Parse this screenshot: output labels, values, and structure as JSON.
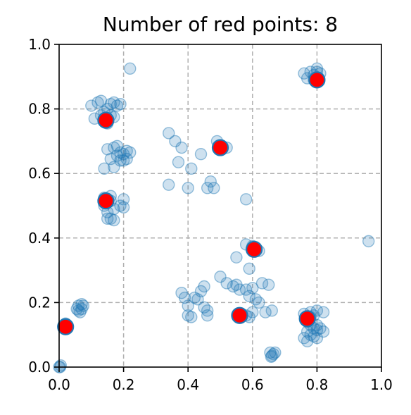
{
  "chart_data": {
    "type": "scatter",
    "title": "Number of red points: 8",
    "xlabel": "",
    "ylabel": "",
    "xlim": [
      0.0,
      1.0
    ],
    "ylim": [
      0.0,
      1.0
    ],
    "x_ticks": [
      "0.0",
      "0.2",
      "0.4",
      "0.6",
      "0.8",
      "1.0"
    ],
    "y_ticks": [
      "0.0",
      "0.2",
      "0.4",
      "0.6",
      "0.8",
      "1.0"
    ],
    "grid": true,
    "colors": {
      "blue": "#1f77b4",
      "red": "#ff0000"
    },
    "series": [
      {
        "points": [
          [
            0.22,
            0.925
          ],
          [
            0.76,
            0.91
          ],
          [
            0.78,
            0.915
          ],
          [
            0.79,
            0.905
          ],
          [
            0.8,
            0.925
          ],
          [
            0.81,
            0.91
          ],
          [
            0.77,
            0.895
          ],
          [
            0.79,
            0.89
          ],
          [
            0.8,
            0.915
          ],
          [
            0.1,
            0.81
          ],
          [
            0.12,
            0.82
          ],
          [
            0.13,
            0.825
          ],
          [
            0.15,
            0.8
          ],
          [
            0.16,
            0.815
          ],
          [
            0.17,
            0.82
          ],
          [
            0.18,
            0.81
          ],
          [
            0.14,
            0.79
          ],
          [
            0.11,
            0.77
          ],
          [
            0.13,
            0.78
          ],
          [
            0.16,
            0.78
          ],
          [
            0.19,
            0.815
          ],
          [
            0.15,
            0.755
          ],
          [
            0.17,
            0.775
          ],
          [
            0.17,
            0.68
          ],
          [
            0.18,
            0.685
          ],
          [
            0.19,
            0.665
          ],
          [
            0.2,
            0.66
          ],
          [
            0.21,
            0.67
          ],
          [
            0.22,
            0.665
          ],
          [
            0.15,
            0.675
          ],
          [
            0.16,
            0.645
          ],
          [
            0.17,
            0.62
          ],
          [
            0.14,
            0.615
          ],
          [
            0.19,
            0.64
          ],
          [
            0.2,
            0.64
          ],
          [
            0.18,
            0.655
          ],
          [
            0.21,
            0.645
          ],
          [
            0.34,
            0.725
          ],
          [
            0.36,
            0.7
          ],
          [
            0.38,
            0.68
          ],
          [
            0.37,
            0.635
          ],
          [
            0.34,
            0.565
          ],
          [
            0.41,
            0.615
          ],
          [
            0.4,
            0.555
          ],
          [
            0.44,
            0.66
          ],
          [
            0.47,
            0.575
          ],
          [
            0.46,
            0.555
          ],
          [
            0.48,
            0.555
          ],
          [
            0.49,
            0.7
          ],
          [
            0.5,
            0.68
          ],
          [
            0.52,
            0.68
          ],
          [
            0.14,
            0.5
          ],
          [
            0.15,
            0.48
          ],
          [
            0.16,
            0.515
          ],
          [
            0.17,
            0.49
          ],
          [
            0.15,
            0.46
          ],
          [
            0.16,
            0.46
          ],
          [
            0.17,
            0.455
          ],
          [
            0.19,
            0.5
          ],
          [
            0.2,
            0.52
          ],
          [
            0.2,
            0.495
          ],
          [
            0.14,
            0.525
          ],
          [
            0.16,
            0.53
          ],
          [
            0.58,
            0.52
          ],
          [
            0.96,
            0.39
          ],
          [
            0.55,
            0.34
          ],
          [
            0.58,
            0.38
          ],
          [
            0.6,
            0.375
          ],
          [
            0.62,
            0.36
          ],
          [
            0.59,
            0.305
          ],
          [
            0.5,
            0.28
          ],
          [
            0.52,
            0.26
          ],
          [
            0.54,
            0.25
          ],
          [
            0.56,
            0.24
          ],
          [
            0.58,
            0.24
          ],
          [
            0.59,
            0.22
          ],
          [
            0.6,
            0.245
          ],
          [
            0.61,
            0.21
          ],
          [
            0.62,
            0.2
          ],
          [
            0.63,
            0.26
          ],
          [
            0.65,
            0.255
          ],
          [
            0.64,
            0.17
          ],
          [
            0.66,
            0.175
          ],
          [
            0.55,
            0.255
          ],
          [
            0.38,
            0.23
          ],
          [
            0.39,
            0.215
          ],
          [
            0.4,
            0.19
          ],
          [
            0.4,
            0.16
          ],
          [
            0.41,
            0.155
          ],
          [
            0.42,
            0.215
          ],
          [
            0.43,
            0.21
          ],
          [
            0.44,
            0.235
          ],
          [
            0.45,
            0.25
          ],
          [
            0.45,
            0.185
          ],
          [
            0.46,
            0.175
          ],
          [
            0.46,
            0.16
          ],
          [
            0.58,
            0.16
          ],
          [
            0.59,
            0.155
          ],
          [
            0.6,
            0.17
          ],
          [
            0.06,
            0.19
          ],
          [
            0.07,
            0.195
          ],
          [
            0.06,
            0.175
          ],
          [
            0.065,
            0.17
          ],
          [
            0.07,
            0.18
          ],
          [
            0.075,
            0.19
          ],
          [
            0.055,
            0.18
          ],
          [
            0.02,
            0.135
          ],
          [
            0.025,
            0.12
          ],
          [
            0.76,
            0.165
          ],
          [
            0.78,
            0.17
          ],
          [
            0.79,
            0.16
          ],
          [
            0.8,
            0.175
          ],
          [
            0.82,
            0.17
          ],
          [
            0.77,
            0.14
          ],
          [
            0.78,
            0.13
          ],
          [
            0.79,
            0.12
          ],
          [
            0.8,
            0.115
          ],
          [
            0.81,
            0.12
          ],
          [
            0.77,
            0.11
          ],
          [
            0.78,
            0.1
          ],
          [
            0.79,
            0.095
          ],
          [
            0.8,
            0.09
          ],
          [
            0.82,
            0.11
          ],
          [
            0.76,
            0.09
          ],
          [
            0.77,
            0.08
          ],
          [
            0.8,
            0.13
          ],
          [
            0.78,
            0.155
          ],
          [
            0.655,
            0.045
          ],
          [
            0.665,
            0.04
          ],
          [
            0.66,
            0.035
          ],
          [
            0.67,
            0.045
          ],
          [
            0.658,
            0.032
          ],
          [
            0.0,
            0.0
          ],
          [
            0.005,
            0.005
          ],
          [
            0.003,
            0.0
          ]
        ]
      },
      {
        "points": [
          [
            0.8,
            0.89
          ],
          [
            0.145,
            0.765
          ],
          [
            0.5,
            0.68
          ],
          [
            0.145,
            0.515
          ],
          [
            0.605,
            0.365
          ],
          [
            0.56,
            0.16
          ],
          [
            0.77,
            0.15
          ],
          [
            0.02,
            0.125
          ]
        ]
      }
    ]
  }
}
